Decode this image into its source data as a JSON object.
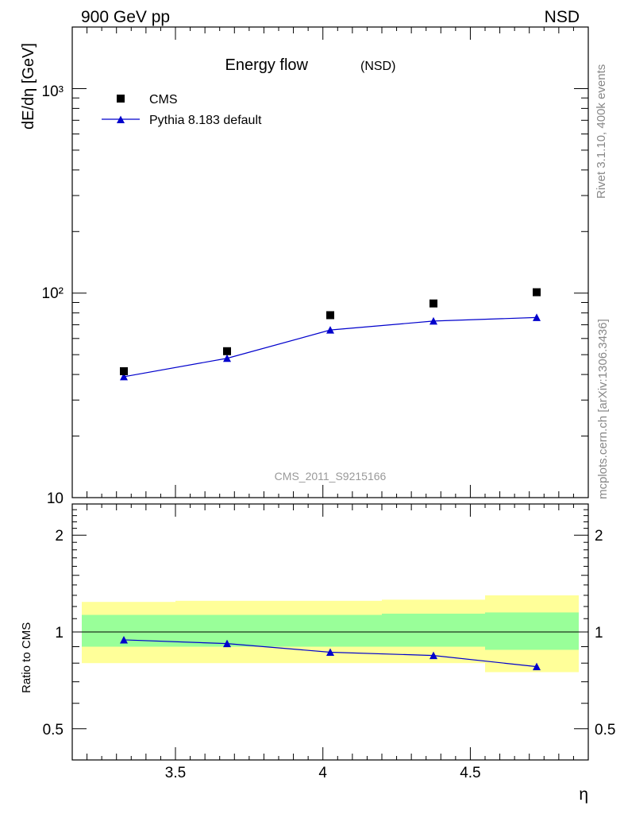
{
  "header": {
    "left": "900 GeV pp",
    "right": "NSD"
  },
  "side_labels": {
    "rivet": "Rivet 3.1.10,  400k events",
    "mcplots": "mcplots.cern.ch [arXiv:1306.3436]"
  },
  "analysis_id": "CMS_2011_S9215166",
  "chart_data": [
    {
      "type": "scatter",
      "title": "Energy flow",
      "title_suffix": "(NSD)",
      "ylabel": "dE/dη [GeV]",
      "yscale": "log",
      "ylim": [
        10,
        2000
      ],
      "xlim": [
        3.15,
        4.9
      ],
      "ytick_labels": [
        "10",
        "10²",
        "10³"
      ],
      "legend_placement": "top-left",
      "series": [
        {
          "name": "CMS",
          "marker": "square",
          "color": "#000000",
          "x": [
            3.325,
            3.675,
            4.025,
            4.375,
            4.725
          ],
          "values": [
            41.5,
            52,
            78,
            89,
            101
          ]
        },
        {
          "name": "Pythia 8.183 default",
          "marker": "triangle",
          "color": "#0000cc",
          "x": [
            3.325,
            3.675,
            4.025,
            4.375,
            4.725
          ],
          "values": [
            39,
            48,
            66,
            73,
            76
          ]
        }
      ]
    },
    {
      "type": "line",
      "ylabel": "Ratio to CMS",
      "xlabel": "η",
      "yscale": "log",
      "ylim": [
        0.4,
        2.5
      ],
      "xlim": [
        3.15,
        4.9
      ],
      "xtick_labels": [
        "3.5",
        "4",
        "4.5"
      ],
      "xticks": [
        3.5,
        4.0,
        4.5
      ],
      "ytick_labels": [
        "0.5",
        "1",
        "2"
      ],
      "yticks": [
        0.5,
        1,
        2
      ],
      "reference_line": 1,
      "bands": [
        {
          "x0": 3.15,
          "x1": 3.5,
          "inner": [
            0.9,
            1.13
          ],
          "outer": [
            0.8,
            1.24
          ]
        },
        {
          "x0": 3.5,
          "x1": 3.85,
          "inner": [
            0.9,
            1.13
          ],
          "outer": [
            0.8,
            1.25
          ]
        },
        {
          "x0": 3.85,
          "x1": 4.2,
          "inner": [
            0.9,
            1.13
          ],
          "outer": [
            0.8,
            1.25
          ]
        },
        {
          "x0": 4.2,
          "x1": 4.55,
          "inner": [
            0.9,
            1.14
          ],
          "outer": [
            0.8,
            1.26
          ]
        },
        {
          "x0": 4.55,
          "x1": 4.9,
          "inner": [
            0.88,
            1.15
          ],
          "outer": [
            0.75,
            1.3
          ]
        }
      ],
      "band_colors": {
        "inner": "#99ff99",
        "outer": "#ffff99"
      },
      "series": [
        {
          "name": "Pythia 8.183 default",
          "color": "#0000cc",
          "x": [
            3.325,
            3.675,
            4.025,
            4.375,
            4.725
          ],
          "values": [
            0.945,
            0.92,
            0.865,
            0.845,
            0.78
          ]
        }
      ]
    }
  ]
}
